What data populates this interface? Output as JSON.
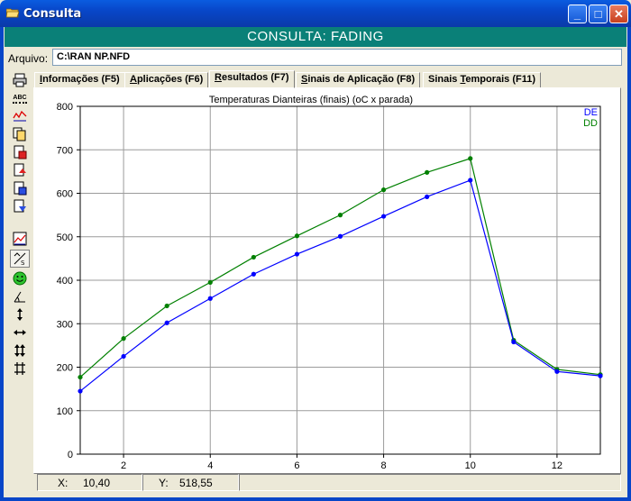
{
  "window": {
    "title": "Consulta",
    "minimize_glyph": "_",
    "maximize_glyph": "□",
    "close_glyph": "✕"
  },
  "header": {
    "title": "CONSULTA: FADING"
  },
  "file": {
    "label": "Arquivo:",
    "value": "C:\\RAN NP.NFD"
  },
  "tabs": [
    {
      "label": "Informações (F5)",
      "hot": "I",
      "rest": "nformações (F5)",
      "active": false
    },
    {
      "label": "Aplicações (F6)",
      "hot": "A",
      "rest": "plicações (F6)",
      "active": false
    },
    {
      "label": "Resultados (F7)",
      "hot": "R",
      "rest": "esultados (F7)",
      "active": true
    },
    {
      "label": "Sinais de Aplicação (F8)",
      "hot": "S",
      "rest": "inais de Aplicação (F8)",
      "active": false
    },
    {
      "pre": "Sinais ",
      "hot": "T",
      "rest": "emporais (F11)",
      "active": false
    }
  ],
  "toolbar": [
    {
      "name": "print-icon"
    },
    {
      "name": "abc-icon",
      "text": "ABC"
    },
    {
      "name": "chart-legend-icon"
    },
    {
      "name": "copy-icon"
    },
    {
      "name": "export-red-icon"
    },
    {
      "name": "export-up-icon"
    },
    {
      "name": "export-blue-icon"
    },
    {
      "name": "export-down-icon"
    },
    {
      "name": "chart-view-icon"
    },
    {
      "name": "point-select-icon"
    },
    {
      "name": "smiley-icon"
    },
    {
      "name": "angle-tool-icon"
    },
    {
      "name": "vertical-arrow-icon"
    },
    {
      "name": "horizontal-arrow-icon"
    },
    {
      "name": "double-vertical-arrow-icon"
    },
    {
      "name": "fit-arrows-icon"
    }
  ],
  "status": {
    "x_label": "X:",
    "x_value": "10,40",
    "y_label": "Y:",
    "y_value": "518,55"
  },
  "colors": {
    "series_de": "#0000ff",
    "series_dd": "#008000",
    "header_bg": "#0a8078",
    "grid": "#9b9b9b"
  },
  "chart_data": {
    "type": "line",
    "title": "Temperaturas Dianteiras (finais) (oC x parada)",
    "xlabel": "",
    "ylabel": "",
    "xlim": [
      1,
      13
    ],
    "ylim": [
      0,
      800
    ],
    "x_ticks": [
      2,
      4,
      6,
      8,
      10,
      12
    ],
    "y_ticks": [
      0,
      100,
      200,
      300,
      400,
      500,
      600,
      700,
      800
    ],
    "grid": true,
    "legend_position": "top-right",
    "x": [
      1,
      2,
      3,
      4,
      5,
      6,
      7,
      8,
      9,
      10,
      11,
      12,
      13
    ],
    "series": [
      {
        "name": "DE",
        "color": "#0000ff",
        "values": [
          145,
          225,
          302,
          358,
          414,
          460,
          501,
          547,
          592,
          630,
          258,
          190,
          180
        ]
      },
      {
        "name": "DD",
        "color": "#008000",
        "values": [
          177,
          266,
          341,
          395,
          453,
          502,
          550,
          608,
          648,
          680,
          262,
          195,
          183
        ]
      }
    ]
  }
}
